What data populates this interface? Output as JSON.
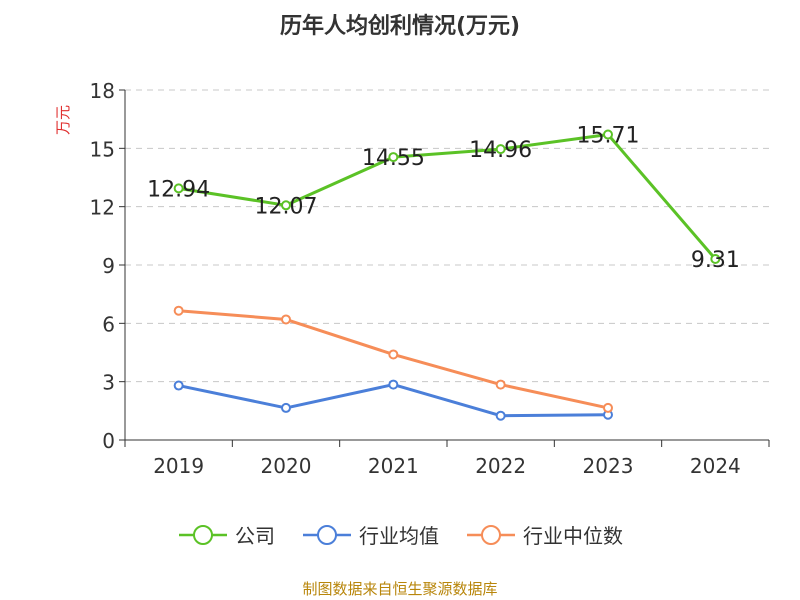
{
  "chart_data": {
    "type": "line",
    "title": "历年人均创利情况(万元)",
    "ylabel": "万元",
    "xlabel": "",
    "ylim": [
      0,
      18
    ],
    "yticks": [
      0,
      3,
      6,
      9,
      12,
      15,
      18
    ],
    "grid": "horizontal dashed",
    "legend_position": "bottom",
    "categories": [
      "2019",
      "2020",
      "2021",
      "2022",
      "2023",
      "2024"
    ],
    "series": [
      {
        "name": "公司",
        "color": "#5bc226",
        "values": [
          12.94,
          12.07,
          14.55,
          14.96,
          15.71,
          9.31
        ],
        "labels": [
          "12.94",
          "12.07",
          "14.55",
          "14.96",
          "15.71",
          "9.31"
        ]
      },
      {
        "name": "行业均值",
        "color": "#4b7fd9",
        "values": [
          2.8,
          1.65,
          2.85,
          1.25,
          1.3,
          null
        ]
      },
      {
        "name": "行业中位数",
        "color": "#f68d58",
        "values": [
          6.65,
          6.2,
          4.4,
          2.85,
          1.65,
          null
        ]
      }
    ]
  },
  "source": "制图数据来自恒生聚源数据库"
}
